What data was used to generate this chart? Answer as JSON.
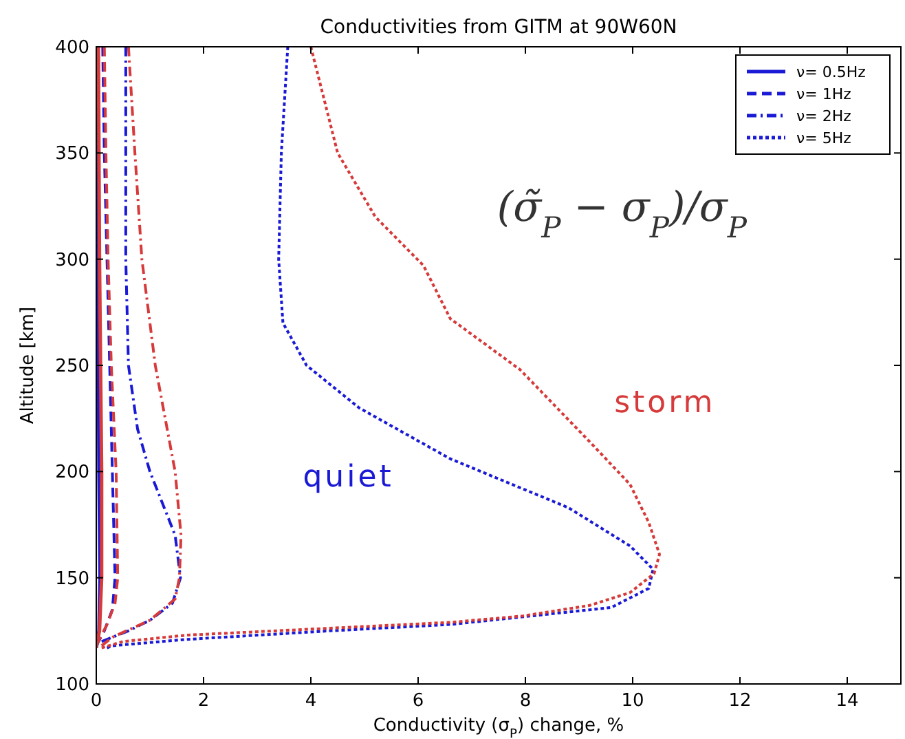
{
  "chart_data": {
    "type": "line",
    "title": "Conductivities from GITM at 90W60N",
    "xlabel": "Conductivity (σ$_{P}$) change, %",
    "ylabel": "Altitude [km]",
    "xlim": [
      0,
      15
    ],
    "xticks": [
      0,
      2,
      4,
      6,
      8,
      10,
      12,
      14
    ],
    "ylim": [
      100,
      400
    ],
    "yticks": [
      100,
      150,
      200,
      250,
      300,
      350,
      400
    ],
    "grid": false,
    "legend": "top right",
    "annotations": [
      "(σ̃$_{P}$ − σ$_{P}$)/σ$_{P}$",
      "quiet",
      "storm"
    ],
    "series": [
      {
        "name": "ν= 0.5Hz",
        "color": "#1a1ad6",
        "line_style": "solid",
        "x": [
          0.0,
          0.05,
          0.07,
          0.05,
          0.04,
          0.03,
          0.03
        ],
        "values": [
          117,
          125,
          150,
          200,
          250,
          300,
          400
        ]
      },
      {
        "color": "#d63a3a",
        "line_style": "solid",
        "x": [
          0.0,
          0.06,
          0.1,
          0.1,
          0.08,
          0.06,
          0.04
        ],
        "values": [
          117,
          125,
          150,
          200,
          250,
          300,
          400
        ]
      },
      {
        "name": "ν= 1Hz",
        "color": "#1a1ad6",
        "line_style": "dashed",
        "x": [
          0.0,
          0.15,
          0.3,
          0.35,
          0.3,
          0.25,
          0.2,
          0.15,
          0.12
        ],
        "values": [
          118,
          125,
          135,
          150,
          200,
          250,
          300,
          350,
          400
        ]
      },
      {
        "color": "#d63a3a",
        "line_style": "dashed",
        "x": [
          0.0,
          0.2,
          0.35,
          0.4,
          0.37,
          0.28,
          0.22,
          0.18,
          0.15
        ],
        "values": [
          118,
          128,
          138,
          150,
          200,
          250,
          300,
          350,
          400
        ]
      },
      {
        "name": "ν=  2Hz",
        "color": "#1a1ad6",
        "line_style": "dashdot",
        "x": [
          0.1,
          0.6,
          1.0,
          1.42,
          1.57,
          1.47,
          1.0,
          0.77,
          0.6,
          0.55,
          0.55,
          0.55
        ],
        "values": [
          120,
          125,
          130,
          138,
          150,
          170,
          200,
          220,
          250,
          300,
          350,
          400
        ]
      },
      {
        "color": "#d63a3a",
        "line_style": "dashdot",
        "x": [
          0.1,
          0.3,
          1.0,
          1.47,
          1.55,
          1.58,
          1.47,
          1.1,
          0.85,
          0.72,
          0.6
        ],
        "values": [
          118,
          122,
          130,
          140,
          150,
          170,
          200,
          250,
          300,
          350,
          400
        ]
      },
      {
        "name": "ν=  5Hz",
        "color": "#1a1ad6",
        "line_style": "dotted",
        "x": [
          0.2,
          0.3,
          1.7,
          4.35,
          6.6,
          9.6,
          10.3,
          10.38,
          9.95,
          8.8,
          6.6,
          4.9,
          3.92,
          3.48,
          3.4,
          3.45,
          3.57
        ],
        "values": [
          117,
          118,
          121,
          125,
          128,
          136,
          145,
          154,
          165,
          183,
          206,
          230,
          250,
          270,
          300,
          350,
          400
        ]
      },
      {
        "color": "#d63a3a",
        "line_style": "dotted",
        "x": [
          0.1,
          0.5,
          1.7,
          6.6,
          7.95,
          9.2,
          9.95,
          10.4,
          10.5,
          10.3,
          9.95,
          9.2,
          7.9,
          6.6,
          6.1,
          5.2,
          4.5,
          4.0
        ],
        "values": [
          117,
          120,
          123,
          129,
          132,
          137,
          143,
          152,
          161,
          176,
          194,
          214,
          248,
          272,
          297,
          320,
          350,
          400
        ]
      }
    ]
  }
}
